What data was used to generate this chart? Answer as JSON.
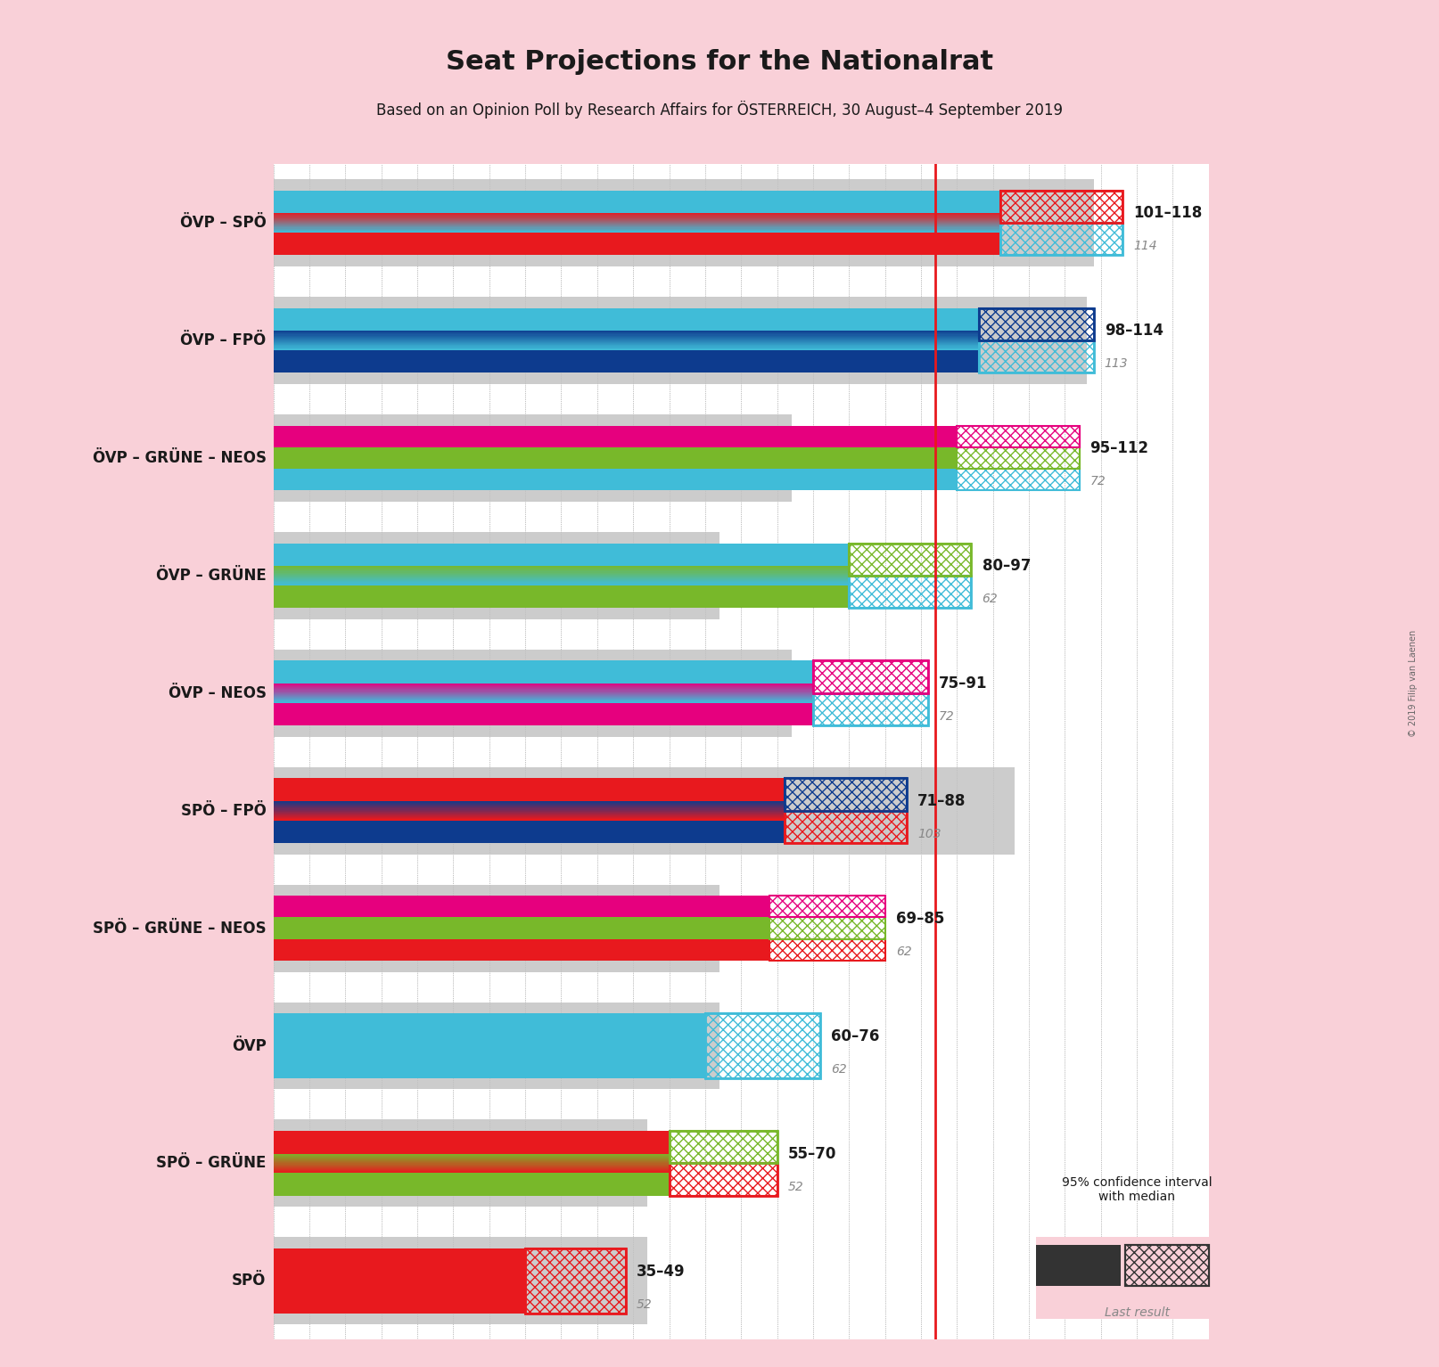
{
  "title": "Seat Projections for the Nationalrat",
  "subtitle": "Based on an Opinion Poll by Research Affairs for ÖSTERREICH, 30 August–4 September 2019",
  "background_color": "#f9d0d8",
  "bar_area_bg": "#ffffff",
  "coalitions": [
    {
      "name": "ÖVP – SPÖ",
      "parties": [
        "ÖVP",
        "SPÖ"
      ],
      "colors": [
        "#40bcd8",
        "#e8191e"
      ],
      "min_seats": 101,
      "max_seats": 118,
      "median": 114,
      "last_result": 114,
      "majority_line": 92
    },
    {
      "name": "ÖVP – FPÖ",
      "parties": [
        "ÖVP",
        "FPÖ"
      ],
      "colors": [
        "#40bcd8",
        "#0d3b8e"
      ],
      "min_seats": 98,
      "max_seats": 114,
      "median": 113,
      "last_result": 113,
      "majority_line": 92
    },
    {
      "name": "ÖVP – GRÜNE – NEOS",
      "parties": [
        "ÖVP",
        "GRÜNE",
        "NEOS"
      ],
      "colors": [
        "#40bcd8",
        "#78b82a",
        "#e6007e"
      ],
      "min_seats": 95,
      "max_seats": 112,
      "median": 72,
      "last_result": 72,
      "majority_line": 92
    },
    {
      "name": "ÖVP – GRÜNE",
      "parties": [
        "ÖVP",
        "GRÜNE"
      ],
      "colors": [
        "#40bcd8",
        "#78b82a"
      ],
      "min_seats": 80,
      "max_seats": 97,
      "median": 62,
      "last_result": 62,
      "majority_line": 92
    },
    {
      "name": "ÖVP – NEOS",
      "parties": [
        "ÖVP",
        "NEOS"
      ],
      "colors": [
        "#40bcd8",
        "#e6007e"
      ],
      "min_seats": 75,
      "max_seats": 91,
      "median": 72,
      "last_result": 72,
      "majority_line": 92
    },
    {
      "name": "SPÖ – FPÖ",
      "parties": [
        "SPÖ",
        "FPÖ"
      ],
      "colors": [
        "#e8191e",
        "#0d3b8e"
      ],
      "min_seats": 71,
      "max_seats": 88,
      "median": 103,
      "last_result": 103,
      "majority_line": 92
    },
    {
      "name": "SPÖ – GRÜNE – NEOS",
      "parties": [
        "SPÖ",
        "GRÜNE",
        "NEOS"
      ],
      "colors": [
        "#e8191e",
        "#78b82a",
        "#e6007e"
      ],
      "min_seats": 69,
      "max_seats": 85,
      "median": 62,
      "last_result": 62,
      "majority_line": 92
    },
    {
      "name": "ÖVP",
      "parties": [
        "ÖVP"
      ],
      "colors": [
        "#40bcd8"
      ],
      "min_seats": 60,
      "max_seats": 76,
      "median": 62,
      "last_result": 62,
      "majority_line": 92
    },
    {
      "name": "SPÖ – GRÜNE",
      "parties": [
        "SPÖ",
        "GRÜNE"
      ],
      "colors": [
        "#e8191e",
        "#78b82a"
      ],
      "min_seats": 55,
      "max_seats": 70,
      "median": 52,
      "last_result": 52,
      "majority_line": 92
    },
    {
      "name": "SPÖ",
      "parties": [
        "SPÖ"
      ],
      "colors": [
        "#e8191e"
      ],
      "min_seats": 35,
      "max_seats": 49,
      "median": 52,
      "last_result": 52,
      "majority_line": 92
    }
  ],
  "majority_line": 92,
  "x_max": 130,
  "x_min": 0,
  "grid_color": "#000000",
  "grid_alpha": 0.2,
  "majority_color": "#e8191e",
  "label_color_main": "#1a1a1a",
  "label_color_secondary": "#888888",
  "last_result_color": "#aaaaaa",
  "copyright": "© 2019 Filip van Laenen"
}
